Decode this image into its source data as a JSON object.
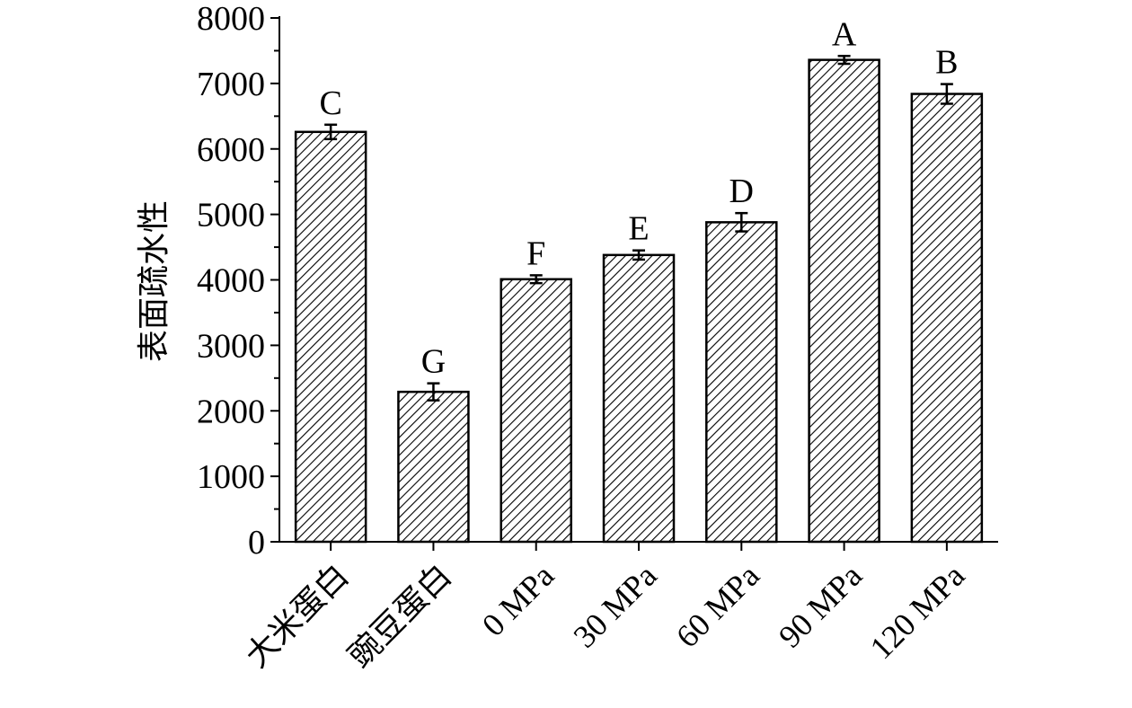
{
  "chart_data": {
    "type": "bar",
    "title": "",
    "xlabel": "",
    "ylabel": "表面疏水性",
    "categories": [
      "大米蛋白",
      "豌豆蛋白",
      "0 MPa",
      "30 MPa",
      "60 MPa",
      "90 MPa",
      "120 MPa"
    ],
    "values": [
      6260,
      2290,
      4010,
      4380,
      4880,
      7360,
      6840
    ],
    "errors": [
      110,
      130,
      60,
      70,
      140,
      60,
      150
    ],
    "significance_letters": [
      "C",
      "G",
      "F",
      "E",
      "D",
      "A",
      "B"
    ],
    "ylim": [
      0,
      8000
    ],
    "yticks": [
      0,
      1000,
      2000,
      3000,
      4000,
      5000,
      6000,
      7000,
      8000
    ],
    "ytick_labels": [
      "0",
      "1000",
      "2000",
      "3000",
      "4000",
      "5000",
      "6000",
      "7000",
      "8000"
    ],
    "grid": false,
    "legend": "none",
    "bar_fill": "diagonal-hatch",
    "colors": {
      "stroke": "#000000",
      "background": "#ffffff"
    }
  }
}
